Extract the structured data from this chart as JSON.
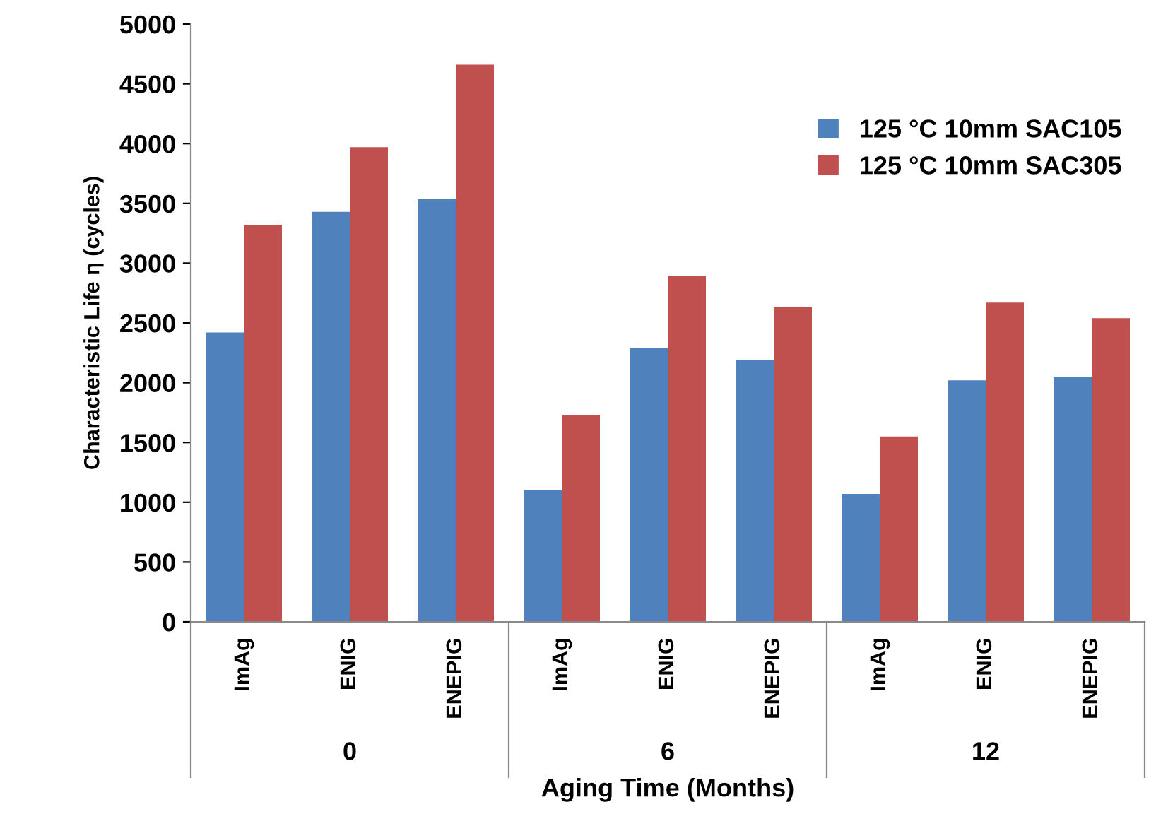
{
  "chart_data": {
    "type": "bar",
    "ylabel": "Characteristic Life η (cycles)",
    "xlabel": "Aging Time (Months)",
    "categories": [
      "ImAg",
      "ENIG",
      "ENEPIG",
      "ImAg",
      "ENIG",
      "ENEPIG",
      "ImAg",
      "ENIG",
      "ENEPIG"
    ],
    "annotations": [
      "0",
      "6",
      "12"
    ],
    "series": [
      {
        "name": "125 °C 10mm SAC105",
        "color": "#4f81bd",
        "values": [
          2420,
          3430,
          3540,
          1100,
          2290,
          2190,
          1070,
          2020,
          2050
        ]
      },
      {
        "name": "125 °C 10mm SAC305",
        "color": "#c0504d",
        "values": [
          3320,
          3970,
          4660,
          1730,
          2890,
          2630,
          1550,
          2670,
          2540
        ]
      }
    ],
    "ylim": [
      0,
      5000
    ],
    "yticks": [
      0,
      500,
      1000,
      1500,
      2000,
      2500,
      3000,
      3500,
      4000,
      4500,
      5000
    ],
    "grid": false,
    "legend": "top right"
  }
}
